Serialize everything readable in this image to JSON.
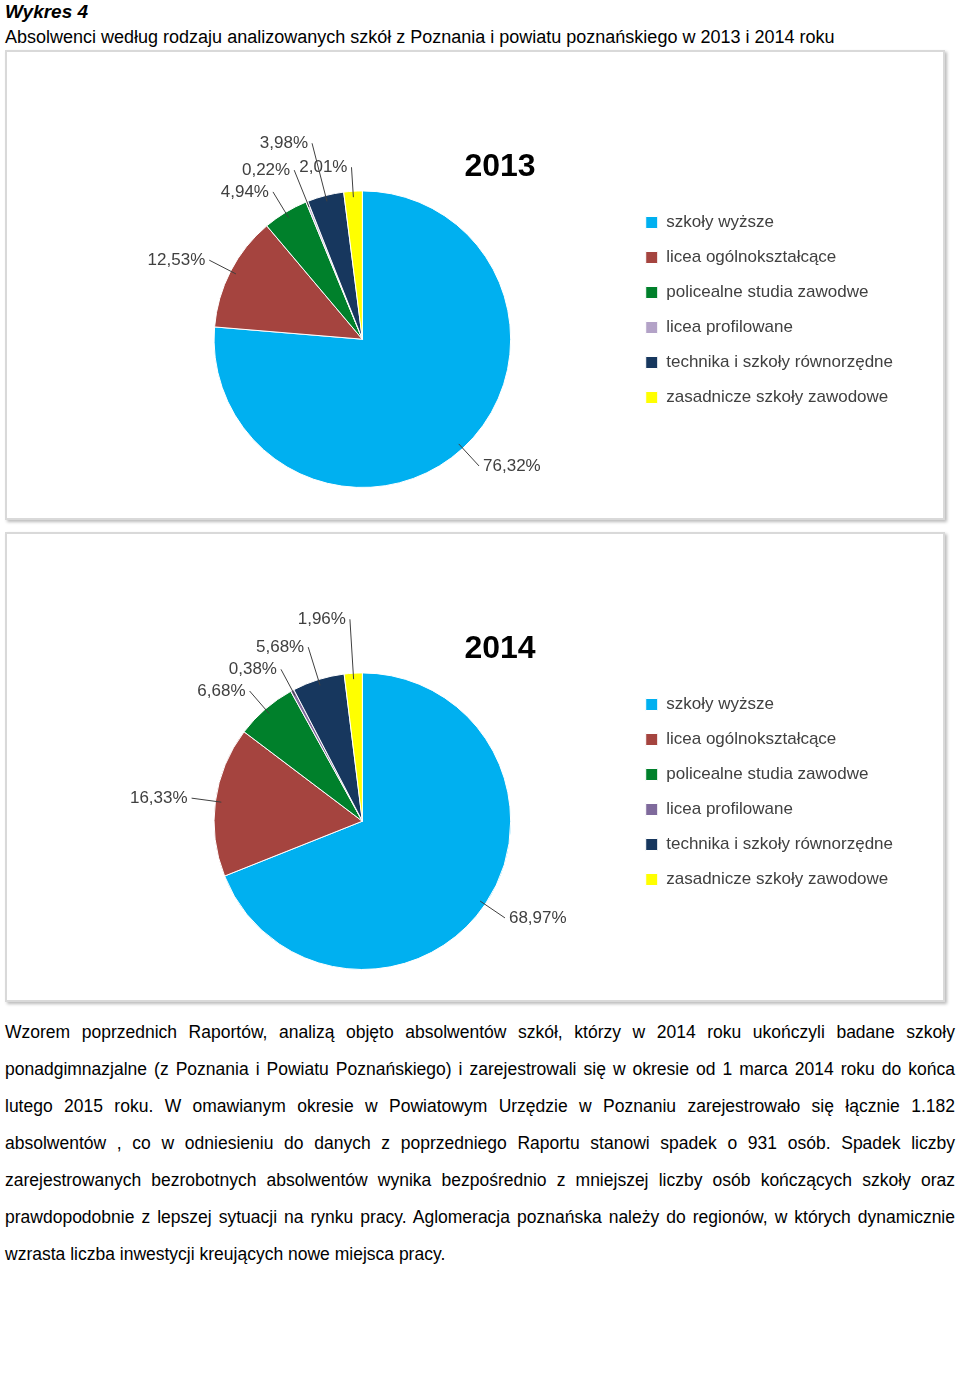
{
  "figure_label": "Wykres 4",
  "caption": "Absolwenci według rodzaju analizowanych szkół z Poznania i powiatu poznańskiego w 2013 i 2014 roku",
  "chart_data": [
    {
      "type": "pie",
      "title": "2013",
      "categories": [
        "szkoły wyższe",
        "licea ogólnokształcące",
        "policealne studia zawodwe",
        "licea profilowane",
        "technika i szkoły równorzędne",
        "zasadnicze szkoły zawodowe"
      ],
      "values": [
        76.32,
        12.53,
        4.94,
        0.22,
        3.98,
        2.01
      ],
      "value_labels": [
        "76,32%",
        "12,53%",
        "4,94%",
        "0,22%",
        "3,98%",
        "2,01%"
      ],
      "colors": [
        "#00b0f0",
        "#a5443f",
        "#00802b",
        "#b3a2c7",
        "#17375e",
        "#ffff00"
      ],
      "data_labels": true,
      "legend": "right"
    },
    {
      "type": "pie",
      "title": "2014",
      "categories": [
        "szkoły wyższe",
        "licea ogólnokształcące",
        "policealne studia zawodwe",
        "licea profilowane",
        "technika i szkoły równorzędne",
        "zasadnicze szkoły zawodowe"
      ],
      "values": [
        68.97,
        16.33,
        6.68,
        0.38,
        5.68,
        1.96
      ],
      "value_labels": [
        "68,97%",
        "16,33%",
        "6,68%",
        "0,38%",
        "5,68%",
        "1,96%"
      ],
      "colors": [
        "#00b0f0",
        "#a5443f",
        "#00802b",
        "#7f6a9c",
        "#17375e",
        "#ffff00"
      ],
      "data_labels": true,
      "legend": "right"
    }
  ],
  "paragraph": "Wzorem poprzednich Raportów, analizą objęto absolwentów szkół, którzy w 2014 roku ukończyli badane szkoły ponadgimnazjalne (z Poznania i Powiatu Poznańskiego) i zarejestrowali się w okresie od 1 marca 2014 roku do końca lutego 2015 roku. W omawianym okresie w Powiatowym Urzędzie w Poznaniu zarejestrowało się łącznie 1.182 absolwentów , co w odniesieniu do danych z poprzedniego Raportu stanowi spadek o 931 osób. Spadek liczby zarejestrowanych bezrobotnych absolwentów wynika bezpośrednio z mniejszej liczby osób kończących szkoły oraz prawdopodobnie z lepszej sytuacji na rynku pracy. Aglomeracja poznańska należy do regionów, w których dynamicznie wzrasta liczba inwestycji kreujących nowe miejsca pracy."
}
